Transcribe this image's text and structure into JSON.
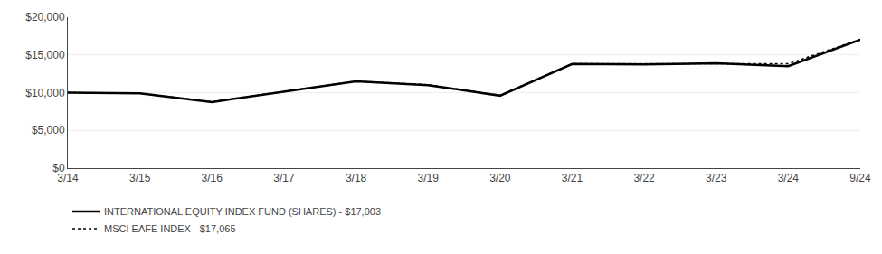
{
  "chart_data": {
    "type": "line",
    "categories": [
      "3/14",
      "3/15",
      "3/16",
      "3/17",
      "3/18",
      "3/19",
      "3/20",
      "3/21",
      "3/22",
      "3/23",
      "3/24",
      "9/24"
    ],
    "series": [
      {
        "name": "INTERNATIONAL EQUITY INDEX FUND (SHARES) - $17,003",
        "color": "#000000",
        "line_style": "solid",
        "values": [
          10000,
          9900,
          8750,
          10100,
          11500,
          11000,
          9600,
          13800,
          13750,
          13900,
          13500,
          17003
        ]
      },
      {
        "name": "MSCI EAFE INDEX - $17,065",
        "color": "#000000",
        "line_style": "dotted",
        "values": [
          10000,
          9920,
          8800,
          10150,
          11520,
          11050,
          9650,
          13820,
          13820,
          13820,
          13820,
          17065
        ]
      }
    ],
    "ylim": [
      0,
      20000
    ],
    "yticks": [
      {
        "value": 0,
        "label": "$0"
      },
      {
        "value": 5000,
        "label": "$5,000"
      },
      {
        "value": 10000,
        "label": "$10,000"
      },
      {
        "value": 15000,
        "label": "$15,000"
      },
      {
        "value": 20000,
        "label": "$20,000"
      }
    ],
    "grid": true,
    "legend": "bottom left"
  }
}
